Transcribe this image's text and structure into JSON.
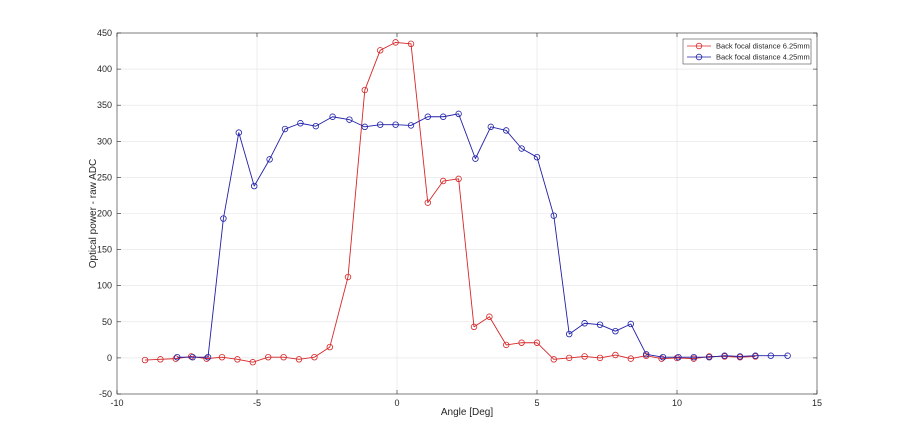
{
  "chart_data": {
    "type": "line",
    "title": "",
    "xlabel": "Angle [Deg]",
    "ylabel": "Optical power - raw ADC",
    "xlim": [
      -10,
      15
    ],
    "ylim": [
      -50,
      450
    ],
    "xticks": [
      -10,
      -5,
      0,
      5,
      10,
      15
    ],
    "yticks": [
      -50,
      0,
      50,
      100,
      150,
      200,
      250,
      300,
      350,
      400,
      450
    ],
    "xtick_labels": [
      "-10",
      "-5",
      "0",
      "5",
      "10",
      "15"
    ],
    "ytick_labels": [
      "-50",
      "0",
      "50",
      "100",
      "150",
      "200",
      "250",
      "300",
      "350",
      "400",
      "450"
    ],
    "grid": true,
    "legend_position": "top-right",
    "series": [
      {
        "name": "Back focal distance 6.25mm",
        "color": "#d62728",
        "marker": "circle",
        "x": [
          -9.0,
          -8.45,
          -7.9,
          -7.35,
          -6.8,
          -6.25,
          -5.7,
          -5.15,
          -4.6,
          -4.05,
          -3.5,
          -2.95,
          -2.4,
          -1.75,
          -1.15,
          -0.6,
          -0.05,
          0.5,
          1.1,
          1.65,
          2.2,
          2.75,
          3.3,
          3.9,
          4.45,
          5.0,
          5.6,
          6.15,
          6.7,
          7.25,
          7.8,
          8.35,
          8.9,
          9.45,
          10.0,
          10.6,
          11.15,
          11.7,
          12.25,
          12.8
        ],
        "y": [
          -3,
          -2,
          -1,
          2,
          -1,
          1,
          -2,
          -6,
          1,
          1,
          -2,
          1,
          15,
          112,
          371,
          426,
          437,
          435,
          215,
          245,
          248,
          43,
          57,
          18,
          21,
          21,
          -2,
          0,
          2,
          0,
          4,
          -1,
          3,
          -1,
          0,
          -1,
          2,
          2,
          1,
          2
        ]
      },
      {
        "name": "Back focal distance 4.25mm",
        "color": "#1f1fa8",
        "marker": "circle",
        "x": [
          -7.85,
          -7.3,
          -6.75,
          -6.2,
          -5.65,
          -5.1,
          -4.55,
          -4.0,
          -3.45,
          -2.9,
          -2.3,
          -1.7,
          -1.15,
          -0.6,
          -0.05,
          0.5,
          1.1,
          1.65,
          2.2,
          2.8,
          3.35,
          3.9,
          4.45,
          5.0,
          5.6,
          6.15,
          6.7,
          7.25,
          7.8,
          8.35,
          8.9,
          9.5,
          10.05,
          10.6,
          11.15,
          11.7,
          12.25,
          12.8,
          13.35,
          13.95
        ],
        "y": [
          1,
          1,
          1,
          193,
          312,
          238,
          275,
          317,
          325,
          321,
          334,
          330,
          320,
          323,
          323,
          322,
          334,
          334,
          338,
          276,
          320,
          315,
          290,
          278,
          197,
          33,
          48,
          46,
          37,
          47,
          5,
          1,
          1,
          1,
          1,
          3,
          2,
          3,
          3,
          3
        ]
      }
    ]
  }
}
